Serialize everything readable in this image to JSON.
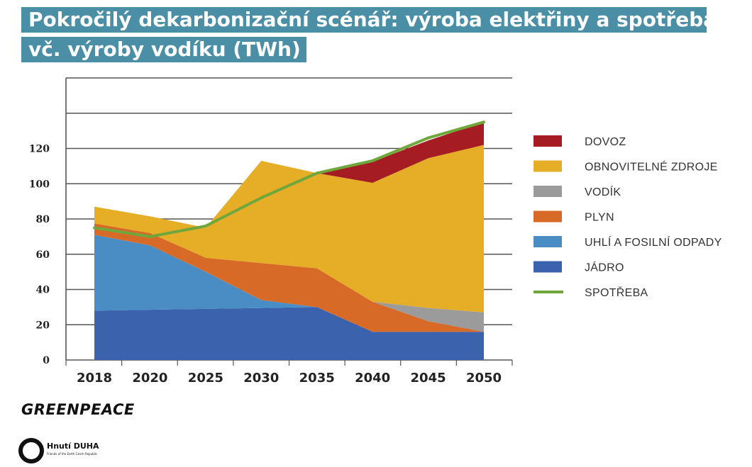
{
  "title": {
    "line1": "Pokročilý dekarbonizační scénář: výroba elektřiny a spotřeba",
    "line2": "vč. výroby vodíku (TWh)"
  },
  "logos": {
    "greenpeace": "GREENPEACE",
    "duha_name": "Hnutí DUHA",
    "duha_sub": "Friends of the Earth Czech Republic"
  },
  "colors": {
    "title_bg": "#4a8fa6",
    "dovoz": "#a51d23",
    "obnovitelne": "#e6ad27",
    "vodik": "#9b9b9b",
    "plyn": "#d86a27",
    "uhli": "#4a8dc5",
    "jadro": "#3b62ad",
    "spotreba": "#6fa73c"
  },
  "chart_data": {
    "type": "area",
    "stacked": true,
    "x": [
      "2018",
      "2020",
      "2025",
      "2030",
      "2035",
      "2040",
      "2045",
      "2050"
    ],
    "y_ticks": [
      "0",
      "20",
      "40",
      "60",
      "80",
      "100",
      "120"
    ],
    "ylim": [
      0,
      160
    ],
    "grid": true,
    "legend_position": "right",
    "series": [
      {
        "name": "JÁDRO",
        "color_key": "jadro",
        "values": [
          28,
          28.5,
          29,
          29.5,
          30,
          16,
          16,
          16
        ]
      },
      {
        "name": "UHLÍ A FOSILNÍ ODPADY",
        "color_key": "uhli",
        "values": [
          43,
          36.5,
          21,
          4.5,
          0,
          0,
          0,
          0
        ]
      },
      {
        "name": "PLYN",
        "color_key": "plyn",
        "values": [
          6.5,
          7,
          8,
          21,
          22,
          17,
          6,
          0
        ]
      },
      {
        "name": "VODÍK",
        "color_key": "vodik",
        "values": [
          0,
          0,
          0,
          0,
          0,
          0,
          7.5,
          11
        ]
      },
      {
        "name": "OBNOVITELNÉ ZDROJE",
        "color_key": "obnovitelne",
        "values": [
          9.5,
          9.5,
          17,
          58,
          54,
          67.5,
          85,
          95
        ]
      },
      {
        "name": "DOVOZ",
        "color_key": "dovoz",
        "values": [
          0,
          0,
          0,
          0,
          0,
          12,
          10,
          13
        ]
      }
    ],
    "line": {
      "name": "SPOTŘEBA",
      "color_key": "spotreba",
      "values": [
        75,
        70,
        76,
        92,
        106,
        113,
        126,
        135
      ]
    },
    "legend": [
      {
        "label": "DOVOZ",
        "color_key": "dovoz",
        "kind": "box"
      },
      {
        "label": "OBNOVITELNÉ ZDROJE",
        "color_key": "obnovitelne",
        "kind": "box"
      },
      {
        "label": "VODÍK",
        "color_key": "vodik",
        "kind": "box"
      },
      {
        "label": "PLYN",
        "color_key": "plyn",
        "kind": "box"
      },
      {
        "label": "UHLÍ A FOSILNÍ ODPADY",
        "color_key": "uhli",
        "kind": "box"
      },
      {
        "label": "JÁDRO",
        "color_key": "jadro",
        "kind": "box"
      },
      {
        "label": "SPOTŘEBA",
        "color_key": "spotreba",
        "kind": "line"
      }
    ]
  }
}
